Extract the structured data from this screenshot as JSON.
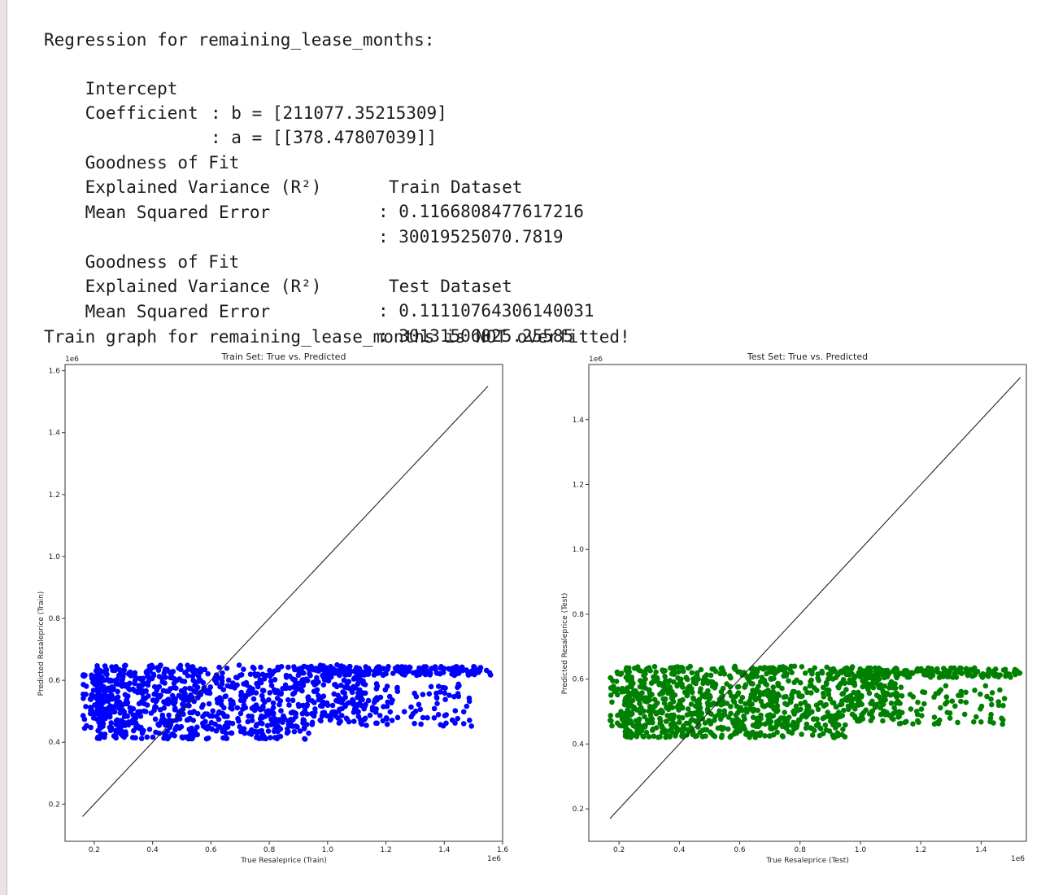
{
  "output": {
    "regression_header": "Regression for remaining_lease_months:",
    "intercept_label": "Intercept",
    "intercept_value": ": b = [211077.35215309]",
    "coefficient_label": "Coefficient",
    "coefficient_value": ": a = [[378.47807039]]",
    "train": {
      "header_label": "Goodness of Fit",
      "header_value": "Train Dataset",
      "r2_label": "Explained Variance (R²)",
      "r2_value": ": 0.1166808477617216",
      "mse_label": "Mean Squared Error",
      "mse_value": ": 30019525070.7819"
    },
    "test": {
      "header_label": "Goodness of Fit",
      "header_value": "Test Dataset",
      "r2_label": "Explained Variance (R²)",
      "r2_value": ": 0.11110764306140031",
      "mse_label": "Mean Squared Error",
      "mse_value": ": 30131506025.25585"
    },
    "overfit_message": "Train graph for remaining_lease_months is NOT overfitted!"
  },
  "chart_data": [
    {
      "type": "scatter",
      "title": "Train Set: True vs. Predicted",
      "xlabel": "True Resaleprice (Train)",
      "ylabel": "Predicted Resaleprice (Train)",
      "x_offset_text": "1e6",
      "y_offset_text": "1e6",
      "xlim": [
        0.1,
        1.6
      ],
      "ylim": [
        0.08,
        1.62
      ],
      "xticks": [
        "0.2",
        "0.4",
        "0.6",
        "0.8",
        "1.0",
        "1.2",
        "1.4",
        "1.6"
      ],
      "yticks": [
        "0.2",
        "0.4",
        "0.6",
        "0.8",
        "1.0",
        "1.2",
        "1.4",
        "1.6"
      ],
      "point_color": "#0000ff",
      "points_x_range": [
        0.16,
        1.56
      ],
      "points_y_range": [
        0.4,
        0.66
      ],
      "reference_line": [
        [
          0.16,
          0.16
        ],
        [
          1.55,
          1.55
        ]
      ],
      "grid": false
    },
    {
      "type": "scatter",
      "title": "Test Set: True vs. Predicted",
      "xlabel": "True Resaleprice (Test)",
      "ylabel": "Predicted Resaleprice (Test)",
      "x_offset_text": "1e6",
      "y_offset_text": "1e6",
      "xlim": [
        0.1,
        1.55
      ],
      "ylim": [
        0.1,
        1.57
      ],
      "xticks": [
        "0.2",
        "0.4",
        "0.6",
        "0.8",
        "1.0",
        "1.2",
        "1.4"
      ],
      "yticks": [
        "0.2",
        "0.4",
        "0.6",
        "0.8",
        "1.0",
        "1.2",
        "1.4"
      ],
      "point_color": "#008000",
      "points_x_range": [
        0.17,
        1.53
      ],
      "points_y_range": [
        0.41,
        0.65
      ],
      "reference_line": [
        [
          0.17,
          0.17
        ],
        [
          1.53,
          1.53
        ]
      ],
      "grid": false
    }
  ]
}
